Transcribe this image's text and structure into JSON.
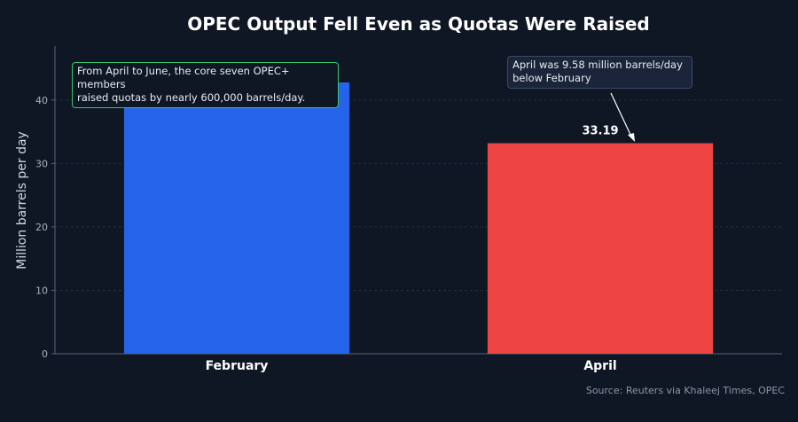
{
  "chart_data": {
    "type": "bar",
    "title": "OPEC Output Fell Even as Quotas Were Raised",
    "ylabel": "Million barrels per day",
    "xlabel": "",
    "categories": [
      "February",
      "April"
    ],
    "values": [
      42.77,
      33.19
    ],
    "data_labels": [
      "",
      "33.19"
    ],
    "bar_colors": [
      "#2563eb",
      "#ef4444"
    ],
    "ylim": [
      0,
      48.5
    ],
    "yticks": [
      0,
      10,
      20,
      30,
      40
    ],
    "grid": true,
    "annotations": [
      "From April to June, the core seven OPEC+ members\nraised quotas by nearly 600,000 barrels/day.",
      "April was 9.58 million barrels/day\nbelow February"
    ],
    "source": "Source: Reuters via Khaleej Times, OPEC"
  }
}
